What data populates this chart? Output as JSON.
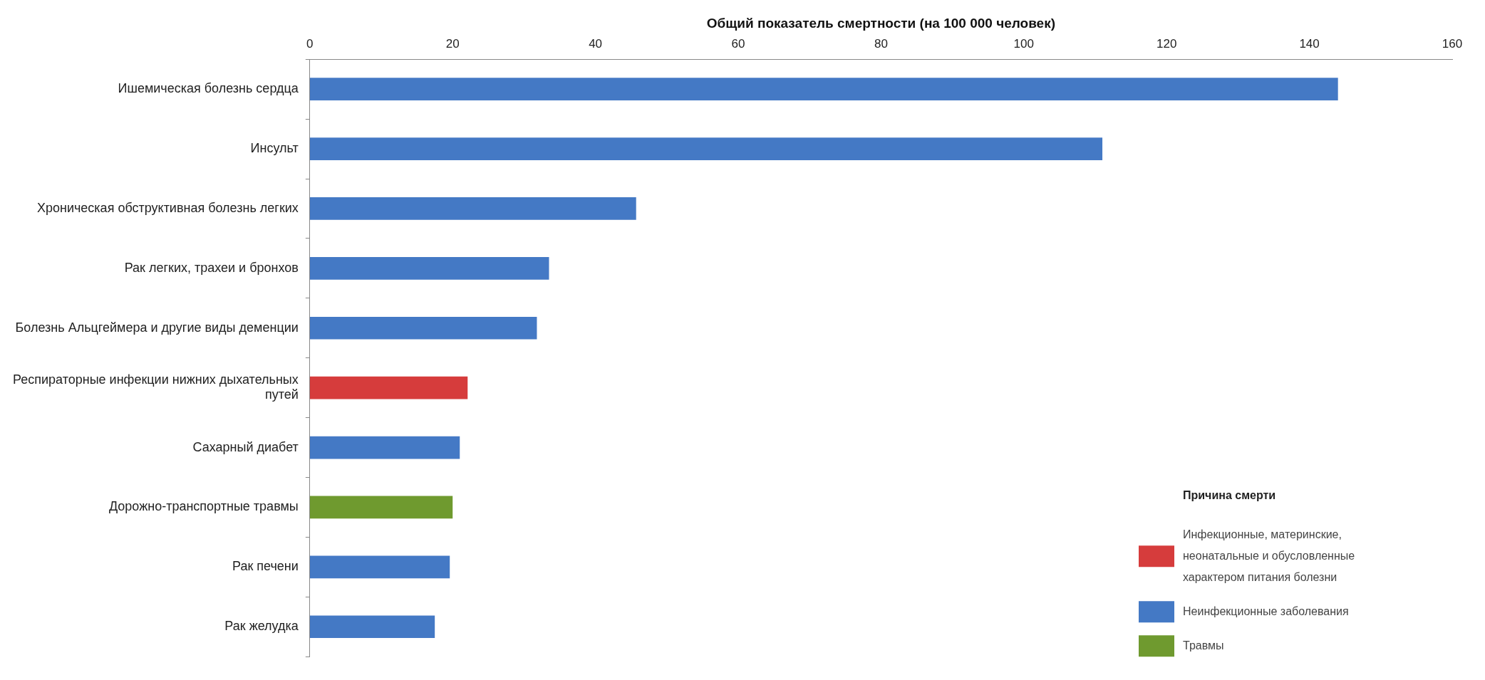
{
  "chart_data": {
    "type": "bar",
    "orientation": "horizontal",
    "xlabel": "Общий показатель смертности (на 100 000 человек)",
    "categories": [
      "Ишемическая болезнь сердца",
      "Инсульт",
      "Хроническая обструктивная болезнь легких",
      "Рак легких, трахеи и бронхов",
      "Болезнь Альцгеймера и другие виды деменции",
      "Респираторные инфекции нижних дыхательных путей",
      "Сахарный диабет",
      "Дорожно-транспортные травмы",
      "Рак печени",
      "Рак желудка"
    ],
    "series": [
      {
        "name": "Инфекционные, материнские, неонатальные и обусловленные характером питания болезни",
        "color": "#d63c3c",
        "values": [
          null,
          null,
          null,
          null,
          null,
          22.1,
          null,
          null,
          null,
          null
        ]
      },
      {
        "name": "Неинфекционные заболевания",
        "color": "#4479c5",
        "values": [
          144.0,
          111.0,
          45.7,
          33.5,
          31.8,
          null,
          21.0,
          null,
          19.6,
          17.5
        ]
      },
      {
        "name": "Травмы",
        "color": "#6f9a2f",
        "values": [
          null,
          null,
          null,
          null,
          null,
          null,
          null,
          20.0,
          null,
          null
        ]
      }
    ],
    "legend_title": "Причина смерти",
    "legend": "bottom right",
    "xlim": [
      0,
      160
    ],
    "xticks": [
      0,
      20,
      40,
      60,
      80,
      100,
      120,
      140,
      160
    ],
    "grid": false
  }
}
